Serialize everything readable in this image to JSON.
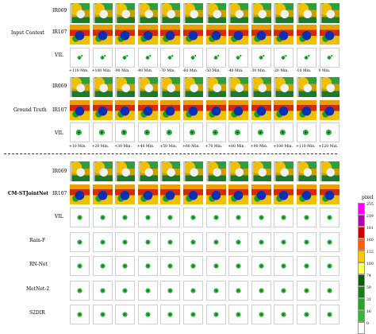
{
  "sections": {
    "input_context": "Input Context",
    "ground_truth": "Ground Truth",
    "model": "CM-STJointNet",
    "model_color": "#000000"
  },
  "row_labels": {
    "ir069": "IR069",
    "ir107": "IR107",
    "vil": "VIL",
    "rainf": "Rain-F",
    "rnnet": "RN-Net",
    "metnet2": "MetNet-2",
    "s2dir": "S2DIR"
  },
  "input_times": [
    "+110 Min.",
    "+100 Min.",
    "-90 Min.",
    "-80 Min.",
    "-70 Min.",
    "-60 Min.",
    "-50 Min.",
    "-40 Min.",
    "-30 Min.",
    "-20 Min.",
    "-10 Min.",
    "0 Min."
  ],
  "output_times": [
    "+10 Min.",
    "+20 Min.",
    "+30 Min.",
    "+40 Min.",
    "+50 Min.",
    "+60 Min.",
    "+70 Min.",
    "+80 Min.",
    "+90 Min.",
    "+100 Min.",
    "+110 Min.",
    "+120 Min."
  ],
  "colorbar": {
    "title": "pixel",
    "ticks": [
      "255",
      "219",
      "181",
      "160",
      "133",
      "100",
      "74",
      "59",
      "31",
      "16",
      "0"
    ],
    "colors": [
      "#ff00ff",
      "#b000b0",
      "#c80000",
      "#ff6000",
      "#ffc800",
      "#ffff60",
      "#0a5a0a",
      "#1a7a1a",
      "#2ea02e",
      "#3cb43c",
      "#ffffff"
    ]
  }
}
